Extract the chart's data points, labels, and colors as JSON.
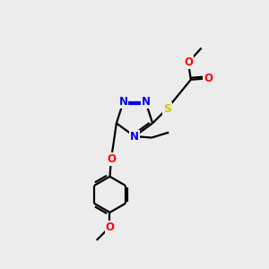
{
  "bg_color": "#ececec",
  "atom_colors": {
    "C": "#000000",
    "N": "#0000ee",
    "O": "#ff0000",
    "S": "#cccc00"
  },
  "bond_color": "#000000",
  "bond_width": 1.6,
  "figsize": [
    3.0,
    3.0
  ],
  "dpi": 100
}
